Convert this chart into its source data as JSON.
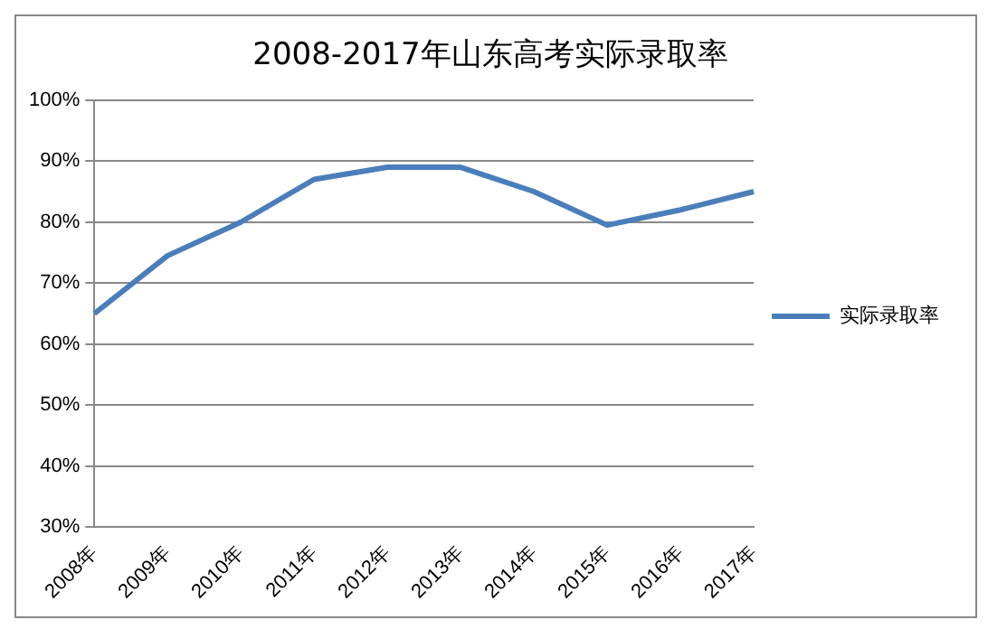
{
  "chart_data": {
    "type": "line",
    "title": "2008-2017年山东高考实际录取率",
    "categories": [
      "2008年",
      "2009年",
      "2010年",
      "2011年",
      "2012年",
      "2013年",
      "2014年",
      "2015年",
      "2016年",
      "2017年"
    ],
    "series": [
      {
        "name": "实际录取率",
        "color": "#4a7ebb",
        "values": [
          65,
          74.5,
          80,
          87,
          89,
          89,
          85,
          79.5,
          82,
          85
        ]
      }
    ],
    "ylim": [
      30,
      100
    ],
    "yticks": [
      {
        "value": 30,
        "label": "30%"
      },
      {
        "value": 40,
        "label": "40%"
      },
      {
        "value": 50,
        "label": "50%"
      },
      {
        "value": 60,
        "label": "60%"
      },
      {
        "value": 70,
        "label": "70%"
      },
      {
        "value": 80,
        "label": "80%"
      },
      {
        "value": 90,
        "label": "90%"
      },
      {
        "value": 100,
        "label": "100%"
      }
    ],
    "grid": "y",
    "legend": "right",
    "marker": "none",
    "line_style": "solid"
  }
}
